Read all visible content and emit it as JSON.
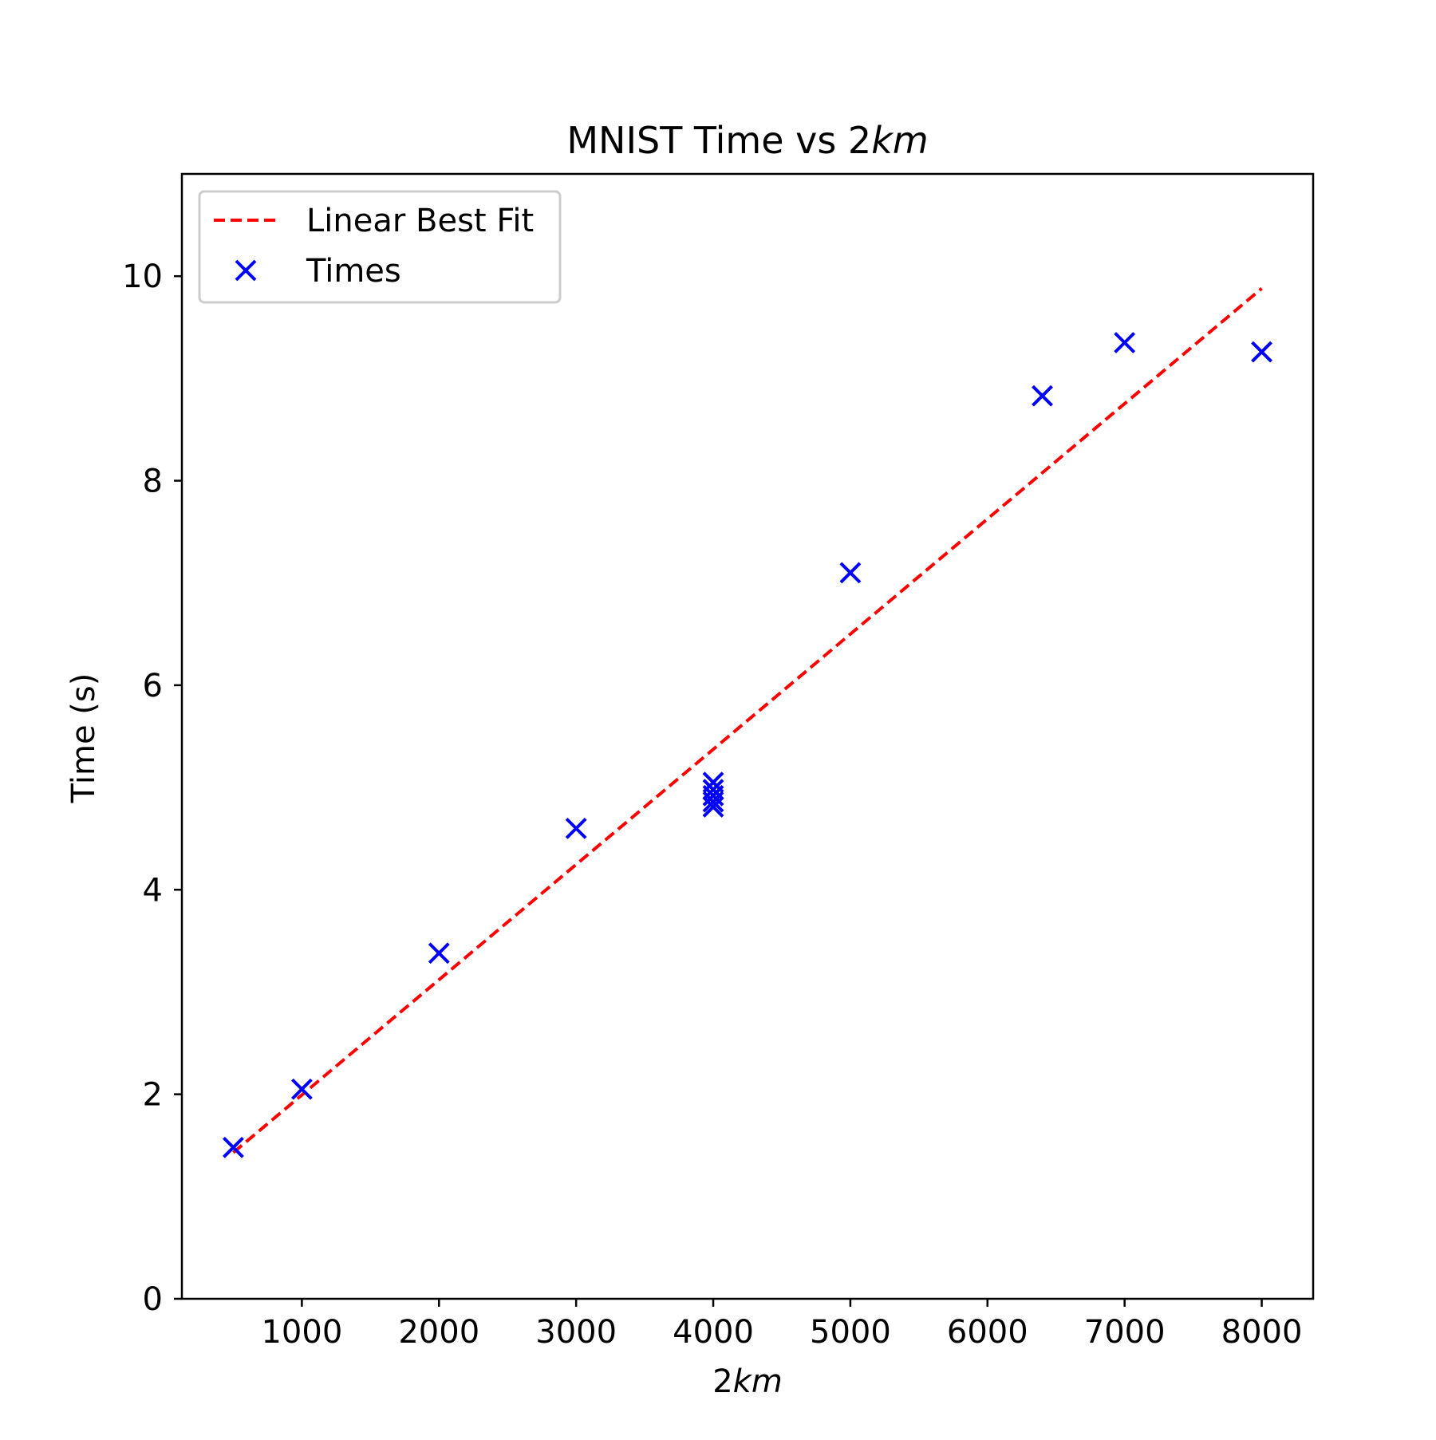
{
  "chart_data": {
    "type": "scatter",
    "title": {
      "prefix": "MNIST Time vs 2",
      "italic": "km"
    },
    "xlabel": {
      "prefix": "2",
      "italic": "km"
    },
    "ylabel": "Time (s)",
    "xlim": [
      125,
      8375
    ],
    "ylim": [
      0,
      11
    ],
    "xticks": [
      1000,
      2000,
      3000,
      4000,
      5000,
      6000,
      7000,
      8000
    ],
    "yticks": [
      0,
      2,
      4,
      6,
      8,
      10
    ],
    "grid": false,
    "legend_position": "top-left",
    "series": [
      {
        "name": "Times",
        "kind": "scatter",
        "marker": "x",
        "color": "#0000ff",
        "points": [
          {
            "x": 500,
            "y": 1.48
          },
          {
            "x": 1000,
            "y": 2.05
          },
          {
            "x": 2000,
            "y": 3.38
          },
          {
            "x": 3000,
            "y": 4.6
          },
          {
            "x": 4000,
            "y": 5.05
          },
          {
            "x": 4000,
            "y": 4.98
          },
          {
            "x": 4000,
            "y": 4.92
          },
          {
            "x": 4000,
            "y": 4.86
          },
          {
            "x": 4000,
            "y": 4.81
          },
          {
            "x": 5000,
            "y": 7.1
          },
          {
            "x": 6400,
            "y": 8.83
          },
          {
            "x": 7000,
            "y": 9.35
          },
          {
            "x": 8000,
            "y": 9.26
          }
        ]
      },
      {
        "name": "Linear Best Fit",
        "kind": "line",
        "style": "dashed",
        "color": "#ff0000",
        "points": [
          {
            "x": 500,
            "y": 1.43
          },
          {
            "x": 8000,
            "y": 9.88
          }
        ]
      }
    ],
    "legend": [
      {
        "label": "Linear Best Fit",
        "symbol": "dashed-line",
        "color": "#ff0000"
      },
      {
        "label": "Times",
        "symbol": "x",
        "color": "#0000ff"
      }
    ]
  }
}
